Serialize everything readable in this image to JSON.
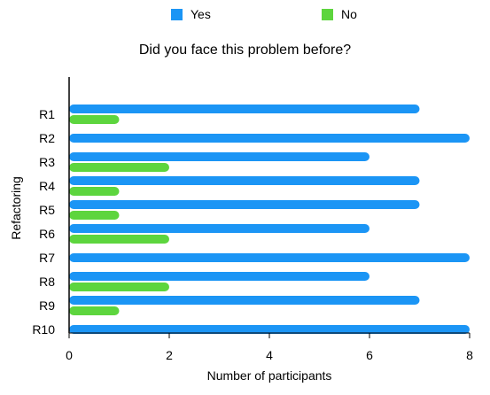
{
  "chart_data": {
    "type": "bar",
    "orientation": "horizontal",
    "title": "Did you face this problem before?",
    "xlabel": "Number of participants",
    "ylabel": "Refactoring",
    "categories": [
      "R1",
      "R2",
      "R3",
      "R4",
      "R5",
      "R6",
      "R7",
      "R8",
      "R9",
      "R10"
    ],
    "series": [
      {
        "name": "Yes",
        "color": "#1b95f5",
        "values": [
          7,
          8,
          6,
          7,
          7,
          6,
          8,
          6,
          7,
          8
        ]
      },
      {
        "name": "No",
        "color": "#5dd53e",
        "values": [
          1,
          0,
          2,
          1,
          1,
          2,
          0,
          2,
          1,
          0
        ]
      }
    ],
    "xlim": [
      0,
      8
    ],
    "xticks": [
      0,
      2,
      4,
      6,
      8
    ],
    "grid": false,
    "legend_position": "top"
  }
}
